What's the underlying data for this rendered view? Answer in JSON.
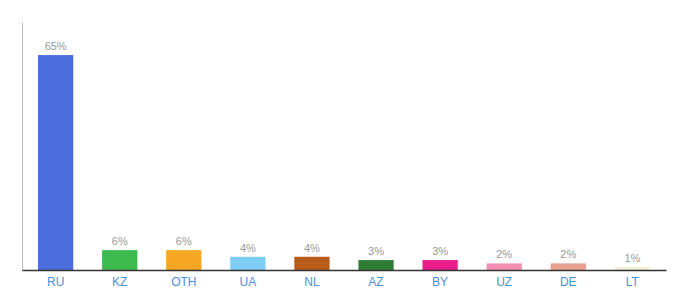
{
  "chart_data": {
    "type": "bar",
    "categories": [
      "RU",
      "KZ",
      "OTH",
      "UA",
      "NL",
      "AZ",
      "BY",
      "UZ",
      "DE",
      "LT"
    ],
    "values": [
      65,
      6,
      6,
      4,
      4,
      3,
      3,
      2,
      2,
      1
    ],
    "value_labels": [
      "65%",
      "6%",
      "6%",
      "4%",
      "4%",
      "3%",
      "3%",
      "2%",
      "2%",
      "1%"
    ],
    "colors": [
      "#4a6fdc",
      "#3dba4e",
      "#f5a623",
      "#7ecef4",
      "#b85c1a",
      "#2e7d32",
      "#e91e8c",
      "#f48fb1",
      "#e8a090",
      "#f5f0d8"
    ],
    "ylim": [
      0,
      75
    ],
    "data_labels": true,
    "tick_labels": "x"
  }
}
